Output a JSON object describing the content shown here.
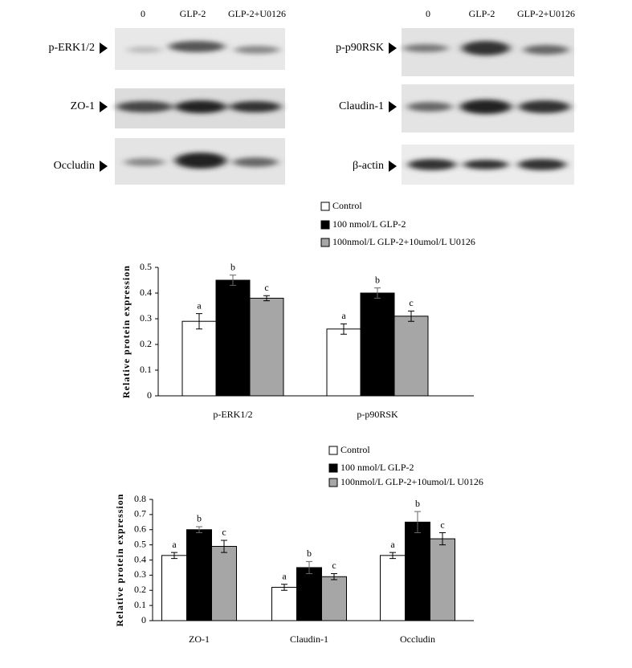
{
  "blots": {
    "left_lanes": [
      "0",
      "GLP-2",
      "GLP-2+U0126"
    ],
    "right_lanes": [
      "0",
      "GLP-2",
      "GLP-2+U0126"
    ],
    "left_rows": [
      "p-ERK1/2",
      "ZO-1",
      "Occludin"
    ],
    "right_rows": [
      "p-p90RSK",
      "Claudin-1",
      "β-actin"
    ]
  },
  "chart_data": [
    {
      "type": "bar",
      "y_label": "Relative protein expression",
      "categories": [
        "p-ERK1/2",
        "p-p90RSK"
      ],
      "series": [
        {
          "name": "Control",
          "color": "#ffffff",
          "values": [
            0.29,
            0.26
          ],
          "errors": [
            0.03,
            0.02
          ],
          "letters": [
            "a",
            "a"
          ]
        },
        {
          "name": "100 nmol/L GLP-2",
          "color": "#000000",
          "values": [
            0.45,
            0.4
          ],
          "errors": [
            0.02,
            0.02
          ],
          "letters": [
            "b",
            "b"
          ]
        },
        {
          "name": "100nmol/L GLP-2+10umol/L U0126",
          "color": "#a6a6a6",
          "values": [
            0.38,
            0.31
          ],
          "errors": [
            0.01,
            0.02
          ],
          "letters": [
            "c",
            "c"
          ]
        }
      ],
      "ylim": [
        0,
        0.5
      ],
      "yticks": [
        0,
        0.1,
        0.2,
        0.3,
        0.4,
        0.5
      ]
    },
    {
      "type": "bar",
      "y_label": "Relative protein expression",
      "categories": [
        "ZO-1",
        "Claudin-1",
        "Occludin"
      ],
      "series": [
        {
          "name": "Control",
          "color": "#ffffff",
          "values": [
            0.43,
            0.22,
            0.43
          ],
          "errors": [
            0.02,
            0.02,
            0.02
          ],
          "letters": [
            "a",
            "a",
            "a"
          ]
        },
        {
          "name": "100 nmol/L GLP-2",
          "color": "#000000",
          "values": [
            0.6,
            0.35,
            0.65
          ],
          "errors": [
            0.02,
            0.04,
            0.07
          ],
          "letters": [
            "b",
            "b",
            "b"
          ]
        },
        {
          "name": "100nmol/L GLP-2+10umol/L U0126",
          "color": "#a6a6a6",
          "values": [
            0.49,
            0.29,
            0.54
          ],
          "errors": [
            0.04,
            0.02,
            0.04
          ],
          "letters": [
            "c",
            "c",
            "c"
          ]
        }
      ],
      "ylim": [
        0,
        0.8
      ],
      "yticks": [
        0,
        0.1,
        0.2,
        0.3,
        0.4,
        0.5,
        0.6,
        0.7,
        0.8
      ]
    }
  ]
}
